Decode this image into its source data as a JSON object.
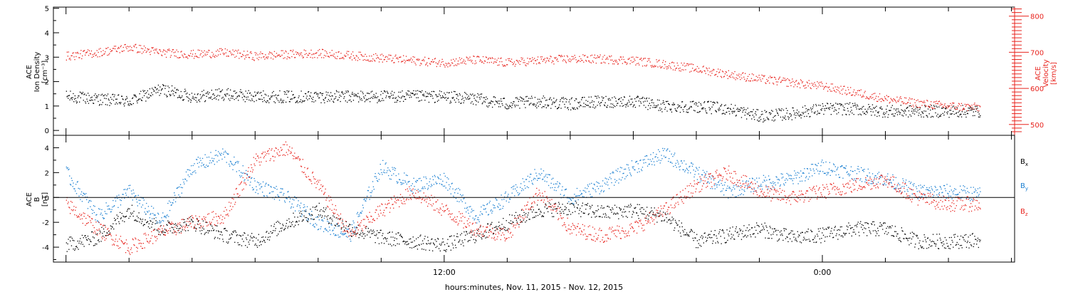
{
  "figure": {
    "xlabel": "hours:minutes, Nov. 11, 2015 - Nov. 12, 2015",
    "xticks": [
      {
        "hour": 12,
        "label": "12:00"
      },
      {
        "hour": 24,
        "label": "0:00"
      }
    ]
  },
  "chart_data": [
    {
      "type": "scatter",
      "panel": "top",
      "ylabel_left": [
        "ACE",
        "Ion Density",
        "[cm⁻³]"
      ],
      "ylabel_right": [
        "ACE",
        "Velocity",
        "[km/s]"
      ],
      "xunit": "hours from 2015-11-11 00:00",
      "xlim": [
        -0.4,
        30.1
      ],
      "ylim_left": [
        -0.2,
        5.05
      ],
      "yticks_left": [
        0,
        1,
        2,
        3,
        4,
        5
      ],
      "ylim_right": [
        470,
        825
      ],
      "yticks_right": [
        500,
        600,
        700,
        800
      ],
      "series": [
        {
          "axis": "left",
          "color": "#000000",
          "x": [
            0.0,
            1.0,
            2.0,
            3.0,
            4.0,
            5.0,
            6.0,
            7.0,
            8.0,
            9.0,
            10.0,
            11.0,
            12.0,
            13.0,
            14.0,
            15.0,
            16.0,
            17.0,
            18.0,
            19.0,
            20.0,
            21.0,
            22.0,
            23.0,
            24.0,
            25.0,
            26.0,
            27.0,
            28.0,
            29.0
          ],
          "y": [
            1.4,
            1.3,
            1.2,
            1.7,
            1.4,
            1.5,
            1.4,
            1.4,
            1.4,
            1.4,
            1.4,
            1.4,
            1.4,
            1.3,
            1.1,
            1.2,
            1.1,
            1.2,
            1.2,
            1.0,
            1.0,
            0.9,
            0.6,
            0.7,
            0.9,
            0.9,
            0.8,
            0.8,
            0.8,
            0.8
          ]
        },
        {
          "axis": "right",
          "color": "#e8251f",
          "x": [
            0.0,
            1.0,
            2.0,
            3.0,
            4.0,
            5.0,
            6.0,
            7.0,
            8.0,
            9.0,
            10.0,
            11.0,
            12.0,
            13.0,
            14.0,
            15.0,
            16.0,
            17.0,
            18.0,
            19.0,
            20.0,
            21.0,
            22.0,
            23.0,
            24.0,
            25.0,
            26.0,
            27.0,
            28.0,
            29.0
          ],
          "y": [
            690,
            700,
            715,
            700,
            695,
            700,
            690,
            695,
            698,
            692,
            685,
            678,
            672,
            680,
            672,
            678,
            683,
            682,
            678,
            667,
            655,
            640,
            627,
            617,
            607,
            590,
            572,
            560,
            552,
            548
          ]
        }
      ]
    },
    {
      "type": "scatter",
      "panel": "bottom",
      "ylabel_left": [
        "ACE",
        "B",
        "[nT]"
      ],
      "xunit": "hours from 2015-11-11 00:00",
      "xlim": [
        -0.4,
        30.1
      ],
      "ylim": [
        -5.2,
        5.0
      ],
      "yticks": [
        -4,
        -2,
        0,
        2,
        4
      ],
      "zero_line": true,
      "series": [
        {
          "name": "B",
          "subscript": "x",
          "color": "#000000",
          "x": [
            0.0,
            1.0,
            2.0,
            3.0,
            4.0,
            5.0,
            6.0,
            7.0,
            8.0,
            9.0,
            10.0,
            11.0,
            12.0,
            13.0,
            14.0,
            15.0,
            16.0,
            17.0,
            18.0,
            19.0,
            20.0,
            21.0,
            22.0,
            23.0,
            24.0,
            25.0,
            26.0,
            27.0,
            28.0,
            29.0
          ],
          "y": [
            -3.8,
            -3.2,
            -1.0,
            -2.5,
            -2.0,
            -3.0,
            -3.5,
            -2.0,
            -1.0,
            -2.5,
            -3.2,
            -3.5,
            -3.8,
            -3.0,
            -2.0,
            -1.0,
            -0.8,
            -1.2,
            -1.0,
            -1.5,
            -3.5,
            -3.0,
            -2.5,
            -3.2,
            -3.0,
            -2.5,
            -2.5,
            -3.5,
            -3.5,
            -3.4
          ]
        },
        {
          "name": "B",
          "subscript": "y",
          "color": "#1a7fd1",
          "x": [
            0.0,
            1.0,
            2.0,
            3.0,
            4.0,
            5.0,
            6.0,
            7.0,
            8.0,
            9.0,
            10.0,
            11.0,
            12.0,
            13.0,
            14.0,
            15.0,
            16.0,
            17.0,
            18.0,
            19.0,
            20.0,
            21.0,
            22.0,
            23.0,
            24.0,
            25.0,
            26.0,
            27.0,
            28.0,
            29.0
          ],
          "y": [
            2.0,
            -1.5,
            0.5,
            -2.0,
            2.5,
            3.5,
            1.0,
            0.0,
            -2.0,
            -3.0,
            2.5,
            1.0,
            1.5,
            -1.5,
            0.0,
            2.0,
            0.0,
            1.0,
            2.5,
            3.5,
            2.0,
            0.5,
            1.2,
            1.5,
            2.5,
            2.0,
            1.5,
            0.5,
            0.5,
            0.3
          ]
        },
        {
          "name": "B",
          "subscript": "z",
          "color": "#e8251f",
          "x": [
            0.0,
            1.0,
            2.0,
            3.0,
            4.0,
            5.0,
            6.0,
            7.0,
            8.0,
            9.0,
            10.0,
            11.0,
            12.0,
            13.0,
            14.0,
            15.0,
            16.0,
            17.0,
            18.0,
            19.0,
            20.0,
            21.0,
            22.0,
            23.0,
            24.0,
            25.0,
            26.0,
            27.0,
            28.0,
            29.0
          ],
          "y": [
            -0.5,
            -2.5,
            -4.0,
            -2.8,
            -2.0,
            -1.5,
            3.0,
            4.0,
            1.0,
            -3.0,
            -1.0,
            0.5,
            -1.0,
            -2.5,
            -3.0,
            0.5,
            -2.5,
            -3.0,
            -2.5,
            -1.0,
            1.0,
            2.0,
            0.5,
            0.0,
            0.5,
            1.0,
            1.5,
            0.0,
            -0.5,
            -0.5
          ]
        }
      ]
    }
  ]
}
